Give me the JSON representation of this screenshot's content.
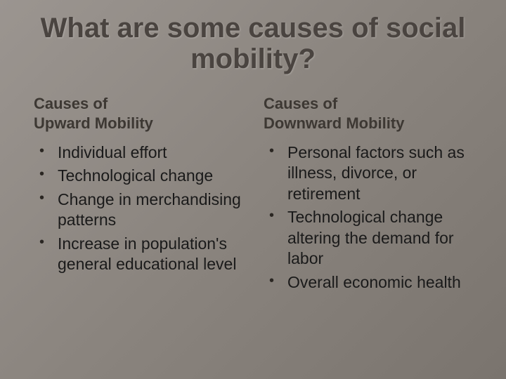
{
  "title": "What are some causes of social mobility?",
  "left": {
    "heading_line1": "Causes of",
    "heading_line2": "Upward Mobility",
    "items": [
      "Individual effort",
      "Technological change",
      "Change in merchandising patterns",
      "Increase in population's general educational level"
    ]
  },
  "right": {
    "heading_line1": "Causes of",
    "heading_line2": "Downward Mobility",
    "items": [
      "Personal factors such as illness, divorce, or retirement",
      "Technological change altering the demand for labor",
      "Overall economic health"
    ]
  },
  "style": {
    "background_gradient": [
      "#9b9590",
      "#8a847e",
      "#7a746e"
    ],
    "title_color": "#4a4440",
    "subheading_color": "#3d3833",
    "body_color": "#1a1a1a",
    "bullet_color": "#2a2622",
    "title_fontsize": 40,
    "subheading_fontsize": 22,
    "body_fontsize": 23
  }
}
